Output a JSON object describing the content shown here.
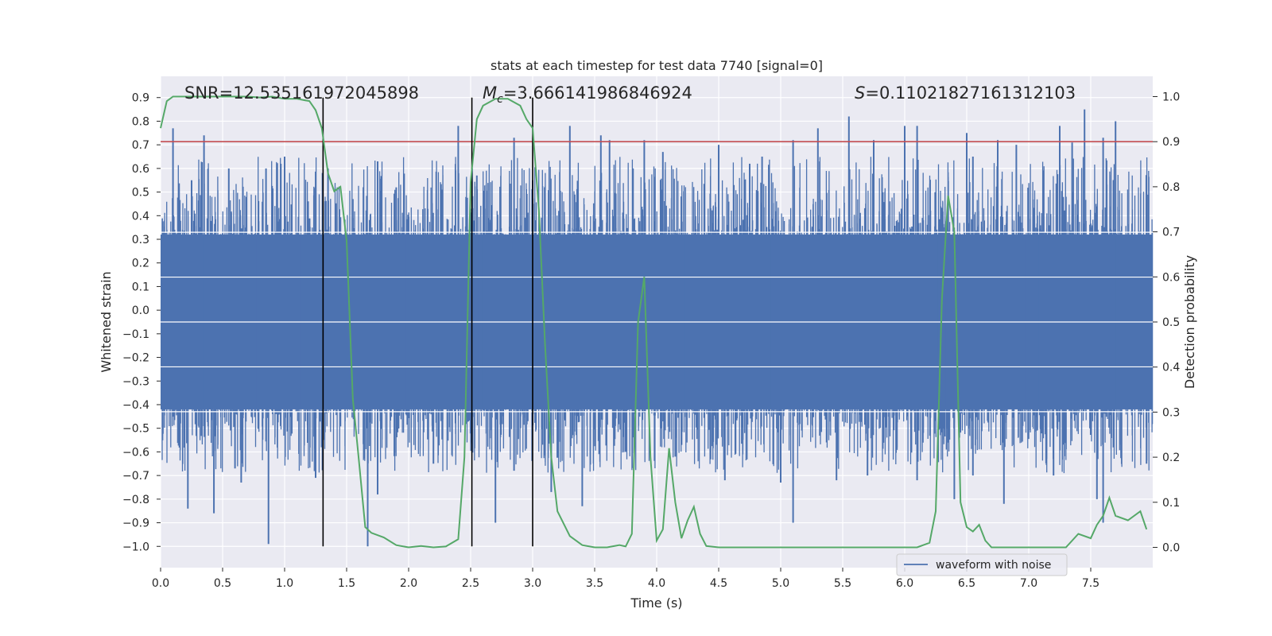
{
  "chart_data": {
    "type": "line",
    "title": "stats at each timestep for test data 7740 [signal=0]",
    "xlabel": "Time (s)",
    "ylabel": "Whitened strain",
    "y2label": "Detection probability",
    "xlim": [
      0.0,
      8.0
    ],
    "ylim": [
      -1.09,
      0.99
    ],
    "y2lim": [
      -0.045,
      1.045
    ],
    "xticks": [
      "0.0",
      "0.5",
      "1.0",
      "1.5",
      "2.0",
      "2.5",
      "3.0",
      "3.5",
      "4.0",
      "4.5",
      "5.0",
      "5.5",
      "6.0",
      "6.5",
      "7.0",
      "7.5"
    ],
    "yticks": [
      "0.9",
      "0.8",
      "0.7",
      "0.6",
      "0.5",
      "0.4",
      "0.3",
      "0.2",
      "0.1",
      "0.0",
      "-0.1",
      "-0.2",
      "-0.3",
      "-0.4",
      "-0.5",
      "-0.6",
      "-0.7",
      "-0.8",
      "-0.9",
      "-1.0"
    ],
    "y2ticks": [
      "0.0",
      "0.1",
      "0.2",
      "0.3",
      "0.4",
      "0.5",
      "0.6",
      "0.7",
      "0.8",
      "0.9",
      "1.0"
    ],
    "annotations": {
      "snr": "SNR=12.535161972045898",
      "mc_symbol": "M",
      "mc_sub": "c",
      "mc_value": "=3.666141986846924",
      "s_symbol": "S",
      "s_value": "=0.11021827161312103"
    },
    "threshold": 0.9,
    "vlines": [
      1.31,
      2.51,
      3.0
    ],
    "series": [
      {
        "name": "waveform with noise",
        "color": "#4c72b0",
        "axis": "left",
        "kind": "noise",
        "band": [
          -0.42,
          0.32
        ],
        "spikes_up": [
          [
            0.1,
            0.77
          ],
          [
            0.25,
            0.55
          ],
          [
            0.35,
            0.74
          ],
          [
            0.55,
            0.6
          ],
          [
            0.85,
            0.6
          ],
          [
            1.0,
            0.65
          ],
          [
            1.35,
            0.6
          ],
          [
            1.75,
            0.63
          ],
          [
            1.9,
            0.52
          ],
          [
            2.4,
            0.78
          ],
          [
            2.55,
            0.57
          ],
          [
            2.85,
            0.73
          ],
          [
            3.0,
            0.55
          ],
          [
            3.3,
            0.78
          ],
          [
            3.55,
            0.74
          ],
          [
            3.62,
            0.72
          ],
          [
            3.9,
            0.72
          ],
          [
            4.05,
            0.67
          ],
          [
            4.5,
            0.7
          ],
          [
            4.75,
            0.62
          ],
          [
            4.85,
            0.65
          ],
          [
            5.1,
            0.72
          ],
          [
            5.3,
            0.77
          ],
          [
            5.55,
            0.82
          ],
          [
            5.75,
            0.72
          ],
          [
            6.0,
            0.78
          ],
          [
            6.1,
            0.78
          ],
          [
            6.5,
            0.75
          ],
          [
            6.55,
            0.65
          ],
          [
            6.75,
            0.72
          ],
          [
            6.9,
            0.7
          ],
          [
            7.25,
            0.78
          ],
          [
            7.35,
            0.71
          ],
          [
            7.45,
            0.85
          ],
          [
            7.6,
            0.73
          ],
          [
            7.7,
            0.8
          ]
        ],
        "spikes_down": [
          [
            0.22,
            -0.84
          ],
          [
            0.43,
            -0.86
          ],
          [
            0.6,
            -0.67
          ],
          [
            0.65,
            -0.73
          ],
          [
            0.87,
            -0.99
          ],
          [
            1.25,
            -0.71
          ],
          [
            1.67,
            -1.0
          ],
          [
            1.75,
            -0.78
          ],
          [
            2.2,
            -0.65
          ],
          [
            2.7,
            -0.9
          ],
          [
            2.85,
            -0.68
          ],
          [
            3.15,
            -0.77
          ],
          [
            3.4,
            -0.83
          ],
          [
            3.75,
            -0.6
          ],
          [
            4.15,
            -0.62
          ],
          [
            4.55,
            -0.72
          ],
          [
            5.0,
            -0.73
          ],
          [
            5.1,
            -0.9
          ],
          [
            5.45,
            -0.72
          ],
          [
            5.7,
            -0.7
          ],
          [
            6.1,
            -0.72
          ],
          [
            6.4,
            -0.8
          ],
          [
            6.55,
            -0.7
          ],
          [
            6.8,
            -0.82
          ],
          [
            7.2,
            -0.7
          ],
          [
            7.55,
            -0.8
          ],
          [
            7.6,
            -0.9
          ],
          [
            7.95,
            -0.65
          ]
        ]
      },
      {
        "name": "Detection probability",
        "color": "#55a868",
        "axis": "right",
        "kind": "line",
        "x": [
          0.0,
          0.05,
          0.1,
          0.2,
          0.3,
          0.4,
          0.5,
          0.6,
          0.7,
          0.8,
          0.9,
          1.0,
          1.1,
          1.2,
          1.25,
          1.3,
          1.35,
          1.4,
          1.45,
          1.5,
          1.55,
          1.6,
          1.65,
          1.7,
          1.8,
          1.9,
          2.0,
          2.1,
          2.2,
          2.3,
          2.4,
          2.45,
          2.5,
          2.55,
          2.6,
          2.7,
          2.8,
          2.9,
          2.95,
          3.0,
          3.05,
          3.1,
          3.15,
          3.2,
          3.3,
          3.4,
          3.5,
          3.6,
          3.7,
          3.75,
          3.8,
          3.85,
          3.9,
          3.95,
          4.0,
          4.05,
          4.1,
          4.15,
          4.2,
          4.25,
          4.3,
          4.35,
          4.4,
          4.5,
          4.7,
          4.9,
          5.0,
          5.2,
          5.4,
          5.6,
          5.8,
          6.0,
          6.1,
          6.2,
          6.25,
          6.3,
          6.35,
          6.4,
          6.45,
          6.5,
          6.55,
          6.6,
          6.65,
          6.7,
          6.75,
          6.8,
          7.0,
          7.2,
          7.3,
          7.4,
          7.5,
          7.55,
          7.6,
          7.65,
          7.7,
          7.8,
          7.9,
          7.95
        ],
        "values": [
          0.93,
          0.99,
          1.0,
          1.0,
          1.0,
          1.0,
          1.0,
          1.0,
          1.0,
          0.998,
          1.0,
          0.995,
          0.995,
          0.99,
          0.97,
          0.93,
          0.83,
          0.79,
          0.8,
          0.68,
          0.33,
          0.19,
          0.045,
          0.032,
          0.022,
          0.005,
          0.0,
          0.003,
          0.0,
          0.002,
          0.018,
          0.2,
          0.81,
          0.95,
          0.98,
          0.995,
          0.995,
          0.98,
          0.95,
          0.93,
          0.75,
          0.45,
          0.2,
          0.08,
          0.025,
          0.005,
          0.0,
          0.0,
          0.005,
          0.002,
          0.03,
          0.5,
          0.6,
          0.2,
          0.015,
          0.04,
          0.22,
          0.1,
          0.02,
          0.06,
          0.09,
          0.03,
          0.003,
          0.0,
          0.0,
          0.0,
          0.0,
          0.0,
          0.0,
          0.0,
          0.0,
          0.0,
          0.0,
          0.01,
          0.08,
          0.55,
          0.78,
          0.7,
          0.1,
          0.045,
          0.035,
          0.05,
          0.015,
          0.0,
          0.0,
          0.0,
          0.0,
          0.0,
          0.0,
          0.03,
          0.02,
          0.05,
          0.07,
          0.11,
          0.07,
          0.06,
          0.08,
          0.04
        ]
      },
      {
        "name": "threshold",
        "color": "#c44e52",
        "axis": "right",
        "kind": "hline",
        "values": [
          0.9
        ]
      }
    ],
    "legend": {
      "entries": [
        "waveform with noise"
      ],
      "placement": "lower-right"
    },
    "grid": true
  }
}
